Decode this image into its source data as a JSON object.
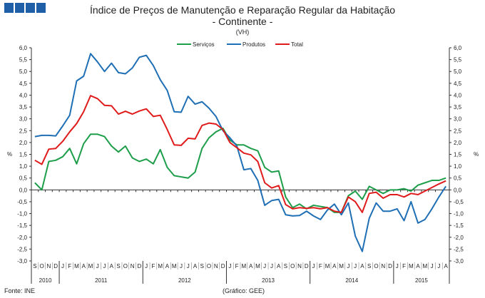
{
  "header": {
    "logo": "GEE"
  },
  "chart_data": {
    "type": "line",
    "title": "Índice de Preços de Manutenção e Reparação Regular da Habitação",
    "subtitle": "- Continente -",
    "unit": "(VH)",
    "ylabel": "%",
    "ylim": [
      -3.0,
      6.0
    ],
    "yticks": [
      "6,0",
      "5,5",
      "5,0",
      "4,5",
      "4,0",
      "3,5",
      "3,0",
      "2,5",
      "2,0",
      "1,5",
      "1,0",
      "0,5",
      "0,0",
      "-0,5",
      "-1,0",
      "-1,5",
      "-2,0",
      "-2,5",
      "-3,0"
    ],
    "months": [
      "S",
      "O",
      "N",
      "D",
      "J",
      "F",
      "M",
      "A",
      "M",
      "J",
      "J",
      "A",
      "S",
      "O",
      "N",
      "D",
      "J",
      "F",
      "M",
      "A",
      "M",
      "J",
      "J",
      "A",
      "S",
      "O",
      "N",
      "D",
      "J",
      "F",
      "M",
      "A",
      "M",
      "J",
      "J",
      "A",
      "S",
      "O",
      "N",
      "D",
      "J",
      "F",
      "M",
      "A",
      "M",
      "J",
      "J",
      "A",
      "S",
      "O",
      "N",
      "D",
      "J",
      "F",
      "M",
      "A",
      "M",
      "J",
      "J",
      "A"
    ],
    "years": [
      {
        "label": "2010",
        "count": 4
      },
      {
        "label": "2011",
        "count": 12
      },
      {
        "label": "2012",
        "count": 12
      },
      {
        "label": "2013",
        "count": 12
      },
      {
        "label": "2014",
        "count": 12
      },
      {
        "label": "2015",
        "count": 8
      }
    ],
    "legend_position": "top-center",
    "series": [
      {
        "name": "Serviços",
        "color": "#1e9e4a",
        "values": [
          0.3,
          0.0,
          1.2,
          1.25,
          1.4,
          1.75,
          1.1,
          1.95,
          2.35,
          2.35,
          2.25,
          1.85,
          1.6,
          1.85,
          1.35,
          1.2,
          1.3,
          1.1,
          1.7,
          0.95,
          0.6,
          0.55,
          0.5,
          0.75,
          1.75,
          2.2,
          2.45,
          2.6,
          2.1,
          1.9,
          1.9,
          1.75,
          1.65,
          0.95,
          0.75,
          0.8,
          -0.3,
          -0.75,
          -0.6,
          -0.8,
          -0.65,
          -0.7,
          -0.75,
          -0.95,
          -0.95,
          -0.25,
          -0.05,
          -0.4,
          0.15,
          0.0,
          -0.15,
          0.0,
          0.0,
          0.05,
          -0.05,
          0.2,
          0.3,
          0.4,
          0.4,
          0.5
        ]
      },
      {
        "name": "Produtos",
        "color": "#1f6fb5",
        "values": [
          2.25,
          2.3,
          2.3,
          2.28,
          2.7,
          3.15,
          4.6,
          4.8,
          5.75,
          5.4,
          5.0,
          5.35,
          4.95,
          4.9,
          5.15,
          5.6,
          5.68,
          5.25,
          4.65,
          4.2,
          3.3,
          3.28,
          3.95,
          3.62,
          3.72,
          3.45,
          3.1,
          2.5,
          2.2,
          1.85,
          0.85,
          0.9,
          0.4,
          -0.65,
          -0.45,
          -0.4,
          -1.05,
          -1.1,
          -1.08,
          -0.9,
          -1.1,
          -1.25,
          -0.85,
          -0.6,
          -1.05,
          -0.55,
          -1.95,
          -2.6,
          -1.2,
          -0.55,
          -0.9,
          -0.9,
          -0.8,
          -1.3,
          -0.5,
          -1.4,
          -1.25,
          -0.8,
          -0.3,
          0.15
        ]
      },
      {
        "name": "Total",
        "color": "#e01b1b",
        "values": [
          1.25,
          1.08,
          1.72,
          1.75,
          2.05,
          2.45,
          2.8,
          3.3,
          3.98,
          3.85,
          3.57,
          3.55,
          3.2,
          3.32,
          3.2,
          3.33,
          3.42,
          3.1,
          3.15,
          2.55,
          1.9,
          1.88,
          2.18,
          2.15,
          2.72,
          2.82,
          2.78,
          2.55,
          2.0,
          1.78,
          1.55,
          1.48,
          1.2,
          0.3,
          0.08,
          0.18,
          -0.62,
          -0.8,
          -0.75,
          -0.78,
          -0.75,
          -0.8,
          -0.75,
          -0.9,
          -0.95,
          -0.3,
          -0.5,
          -0.95,
          -0.15,
          -0.1,
          -0.35,
          -0.2,
          -0.2,
          -0.3,
          -0.15,
          -0.2,
          -0.05,
          0.1,
          0.25,
          0.38
        ]
      }
    ]
  },
  "footer": {
    "source": "Fonte: INE",
    "credit": "(Gráfico: GEE)"
  }
}
